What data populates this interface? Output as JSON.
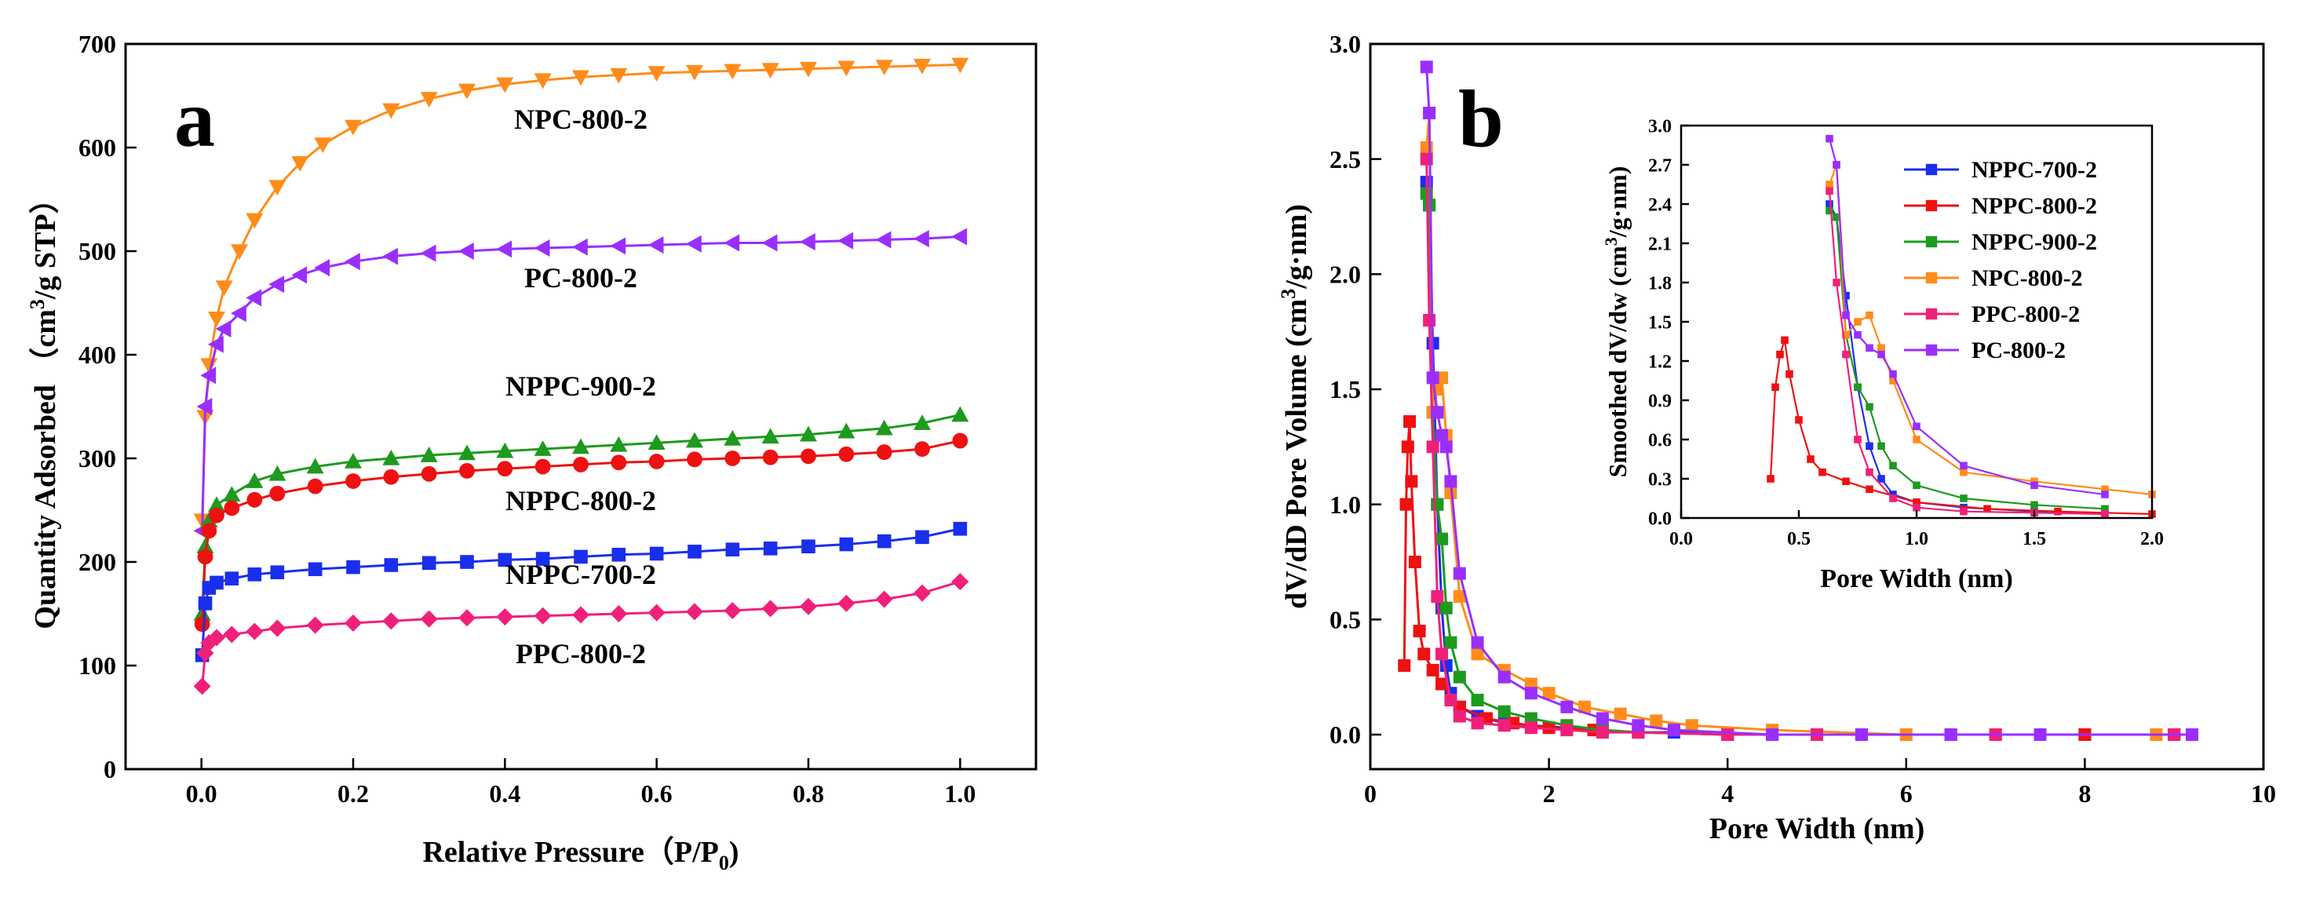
{
  "figure": {
    "panels": [
      {
        "letter": "a"
      },
      {
        "letter": "b"
      }
    ]
  },
  "chart_data": [
    {
      "panel": "a",
      "type": "line",
      "xlabel": "Relative Pressure (P/P0)",
      "ylabel": "Quantity Adsorbed (cm3/g STP)",
      "xlim": [
        -0.1,
        1.1
      ],
      "ylim": [
        0,
        700
      ],
      "xticks": [
        0.0,
        0.2,
        0.4,
        0.6,
        0.8,
        1.0
      ],
      "yticks": [
        0,
        100,
        200,
        300,
        400,
        500,
        600,
        700
      ],
      "grid": false,
      "series": [
        {
          "name": "NPC-800-2",
          "color": "#ff8c1a",
          "marker": "triangle-down",
          "x": [
            0.001,
            0.005,
            0.01,
            0.02,
            0.03,
            0.05,
            0.07,
            0.1,
            0.13,
            0.16,
            0.2,
            0.25,
            0.3,
            0.35,
            0.4,
            0.45,
            0.5,
            0.55,
            0.6,
            0.65,
            0.7,
            0.75,
            0.8,
            0.85,
            0.9,
            0.95,
            1.0
          ],
          "y": [
            240,
            340,
            390,
            435,
            465,
            500,
            530,
            562,
            585,
            603,
            620,
            636,
            647,
            655,
            661,
            665,
            668,
            670,
            672,
            673,
            674,
            675,
            676,
            677,
            678,
            679,
            680
          ]
        },
        {
          "name": "PC-800-2",
          "color": "#9a2eff",
          "marker": "triangle-left",
          "x": [
            0.001,
            0.005,
            0.01,
            0.02,
            0.03,
            0.05,
            0.07,
            0.1,
            0.13,
            0.16,
            0.2,
            0.25,
            0.3,
            0.35,
            0.4,
            0.45,
            0.5,
            0.55,
            0.6,
            0.65,
            0.7,
            0.75,
            0.8,
            0.85,
            0.9,
            0.95,
            1.0
          ],
          "y": [
            230,
            350,
            380,
            410,
            425,
            440,
            455,
            468,
            477,
            484,
            490,
            495,
            498,
            500,
            502,
            503,
            504,
            505,
            506,
            507,
            508,
            508,
            509,
            510,
            511,
            512,
            514
          ]
        },
        {
          "name": "NPPC-900-2",
          "color": "#1e9a1e",
          "marker": "triangle-up",
          "x": [
            0.001,
            0.005,
            0.01,
            0.02,
            0.04,
            0.07,
            0.1,
            0.15,
            0.2,
            0.25,
            0.3,
            0.35,
            0.4,
            0.45,
            0.5,
            0.55,
            0.6,
            0.65,
            0.7,
            0.75,
            0.8,
            0.85,
            0.9,
            0.95,
            1.0
          ],
          "y": [
            150,
            215,
            240,
            255,
            265,
            278,
            285,
            292,
            297,
            300,
            303,
            305,
            307,
            309,
            311,
            313,
            315,
            317,
            319,
            321,
            323,
            326,
            329,
            334,
            342
          ]
        },
        {
          "name": "NPPC-800-2",
          "color": "#ee1111",
          "marker": "circle",
          "x": [
            0.001,
            0.005,
            0.01,
            0.02,
            0.04,
            0.07,
            0.1,
            0.15,
            0.2,
            0.25,
            0.3,
            0.35,
            0.4,
            0.45,
            0.5,
            0.55,
            0.6,
            0.65,
            0.7,
            0.75,
            0.8,
            0.85,
            0.9,
            0.95,
            1.0
          ],
          "y": [
            140,
            205,
            230,
            245,
            252,
            260,
            266,
            273,
            278,
            282,
            285,
            288,
            290,
            292,
            294,
            296,
            297,
            299,
            300,
            301,
            302,
            304,
            306,
            309,
            317
          ]
        },
        {
          "name": "NPPC-700-2",
          "color": "#1a2eee",
          "marker": "square",
          "x": [
            0.001,
            0.005,
            0.01,
            0.02,
            0.04,
            0.07,
            0.1,
            0.15,
            0.2,
            0.25,
            0.3,
            0.35,
            0.4,
            0.45,
            0.5,
            0.55,
            0.6,
            0.65,
            0.7,
            0.75,
            0.8,
            0.85,
            0.9,
            0.95,
            1.0
          ],
          "y": [
            110,
            160,
            175,
            180,
            184,
            188,
            190,
            193,
            195,
            197,
            199,
            200,
            202,
            203,
            205,
            207,
            208,
            210,
            212,
            213,
            215,
            217,
            220,
            224,
            232
          ]
        },
        {
          "name": "PPC-800-2",
          "color": "#f0207a",
          "marker": "diamond",
          "x": [
            0.001,
            0.005,
            0.01,
            0.02,
            0.04,
            0.07,
            0.1,
            0.15,
            0.2,
            0.25,
            0.3,
            0.35,
            0.4,
            0.45,
            0.5,
            0.55,
            0.6,
            0.65,
            0.7,
            0.75,
            0.8,
            0.85,
            0.9,
            0.95,
            1.0
          ],
          "y": [
            80,
            112,
            122,
            127,
            130,
            133,
            136,
            139,
            141,
            143,
            145,
            146,
            147,
            148,
            149,
            150,
            151,
            152,
            153,
            155,
            157,
            160,
            164,
            170,
            181
          ]
        }
      ],
      "annotations": [
        "NPC-800-2",
        "PC-800-2",
        "NPPC-900-2",
        "NPPC-800-2",
        "NPPC-700-2",
        "PPC-800-2"
      ]
    },
    {
      "panel": "b",
      "type": "line",
      "xlabel": "Pore Width (nm)",
      "ylabel": "dV/dD Pore Volume (cm3/g·nm)",
      "xlim": [
        0,
        10
      ],
      "ylim": [
        -0.15,
        3.0
      ],
      "xticks": [
        0,
        2,
        4,
        6,
        8,
        10
      ],
      "yticks": [
        0.0,
        0.5,
        1.0,
        1.5,
        2.0,
        2.5,
        3.0
      ],
      "grid": false,
      "series": [
        {
          "name": "NPPC-700-2",
          "color": "#1a2eee",
          "x": [
            0.63,
            0.66,
            0.7,
            0.75,
            0.8,
            0.85,
            0.9,
            1.0,
            1.2,
            1.5,
            1.8,
            2.2,
            2.6,
            3.0,
            3.4,
            4.5,
            5.5,
            6.5,
            8.0,
            9.0
          ],
          "y": [
            2.4,
            2.3,
            1.7,
            1.0,
            0.55,
            0.3,
            0.18,
            0.12,
            0.08,
            0.05,
            0.04,
            0.03,
            0.02,
            0.01,
            0.01,
            0.0,
            0.0,
            0.0,
            0.0,
            0.0
          ]
        },
        {
          "name": "NPPC-800-2",
          "color": "#ee1111",
          "x": [
            0.38,
            0.4,
            0.42,
            0.44,
            0.46,
            0.5,
            0.55,
            0.6,
            0.7,
            0.8,
            1.0,
            1.3,
            1.6,
            2.0,
            2.5,
            3.0,
            4.0,
            5.0,
            7.0,
            8.0
          ],
          "y": [
            0.3,
            1.0,
            1.25,
            1.36,
            1.1,
            0.75,
            0.45,
            0.35,
            0.28,
            0.22,
            0.12,
            0.07,
            0.05,
            0.03,
            0.02,
            0.01,
            0.0,
            0.0,
            0.0,
            0.0
          ]
        },
        {
          "name": "NPPC-900-2",
          "color": "#1e9a1e",
          "x": [
            0.63,
            0.66,
            0.7,
            0.75,
            0.8,
            0.85,
            0.9,
            1.0,
            1.2,
            1.5,
            1.8,
            2.2,
            2.6,
            3.0,
            4.0,
            5.0,
            7.0,
            9.0
          ],
          "y": [
            2.35,
            2.3,
            1.4,
            1.0,
            0.85,
            0.55,
            0.4,
            0.25,
            0.15,
            0.1,
            0.07,
            0.04,
            0.02,
            0.01,
            0.0,
            0.0,
            0.0,
            0.0
          ]
        },
        {
          "name": "NPC-800-2",
          "color": "#ff8c1a",
          "x": [
            0.63,
            0.66,
            0.7,
            0.75,
            0.8,
            0.85,
            0.9,
            1.0,
            1.2,
            1.5,
            1.8,
            2.0,
            2.4,
            2.8,
            3.2,
            3.6,
            4.5,
            6.0,
            7.0,
            8.8
          ],
          "y": [
            2.55,
            2.7,
            1.4,
            1.5,
            1.55,
            1.3,
            1.05,
            0.6,
            0.35,
            0.28,
            0.22,
            0.18,
            0.12,
            0.09,
            0.06,
            0.04,
            0.02,
            0.0,
            0.0,
            0.0
          ]
        },
        {
          "name": "PPC-800-2",
          "color": "#f0207a",
          "x": [
            0.63,
            0.66,
            0.7,
            0.75,
            0.8,
            0.9,
            1.0,
            1.2,
            1.5,
            1.8,
            2.2,
            2.6,
            3.0,
            4.0,
            5.0,
            7.0,
            9.0
          ],
          "y": [
            2.5,
            1.8,
            1.25,
            0.6,
            0.35,
            0.15,
            0.08,
            0.05,
            0.04,
            0.03,
            0.02,
            0.01,
            0.01,
            0.0,
            0.0,
            0.0,
            0.0
          ]
        },
        {
          "name": "PC-800-2",
          "color": "#9a2eff",
          "x": [
            0.63,
            0.66,
            0.7,
            0.75,
            0.8,
            0.85,
            0.9,
            1.0,
            1.2,
            1.5,
            1.8,
            2.2,
            2.6,
            3.0,
            3.4,
            4.5,
            5.5,
            6.5,
            7.5,
            9.2
          ],
          "y": [
            2.9,
            2.7,
            1.55,
            1.4,
            1.3,
            1.25,
            1.1,
            0.7,
            0.4,
            0.25,
            0.18,
            0.12,
            0.07,
            0.04,
            0.02,
            0.0,
            0.0,
            0.0,
            0.0,
            0.0
          ]
        }
      ],
      "inset": {
        "xlabel": "Pore Width (nm)",
        "ylabel": "Smoothed dV/dw (cm3/g·nm)",
        "xlim": [
          0,
          2.0
        ],
        "ylim": [
          0,
          3.0
        ],
        "xticks": [
          0.0,
          0.5,
          1.0,
          1.5,
          2.0
        ],
        "yticks": [
          0.0,
          0.3,
          0.6,
          0.9,
          1.2,
          1.5,
          1.8,
          2.1,
          2.4,
          2.7,
          3.0
        ],
        "legend_position": "top-right",
        "legend": [
          "NPPC-700-2",
          "NPPC-800-2",
          "NPPC-900-2",
          "NPC-800-2",
          "PPC-800-2",
          "PC-800-2"
        ]
      }
    }
  ]
}
